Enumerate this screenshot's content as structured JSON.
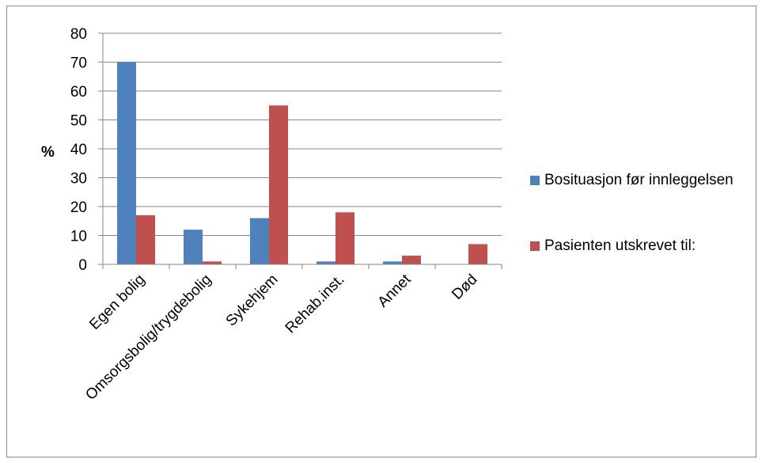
{
  "chart_data": {
    "type": "bar",
    "title": "",
    "xlabel": "",
    "ylabel": "%",
    "ylim": [
      0,
      80
    ],
    "yticks": [
      0,
      10,
      20,
      30,
      40,
      50,
      60,
      70,
      80
    ],
    "grid": true,
    "legend_position": "right",
    "categories": [
      "Egen bolig",
      "Omsorgsbolig/trygdebolig",
      "Sykehjem",
      "Rehab.inst.",
      "Annet",
      "Død"
    ],
    "series": [
      {
        "name": "Bosituasjon før innleggelsen",
        "color": "#4f81bd",
        "values": [
          70,
          12,
          16,
          1,
          1,
          0
        ]
      },
      {
        "name": "Pasienten utskrevet til:",
        "color": "#c0504d",
        "values": [
          17,
          1,
          55,
          18,
          3,
          7
        ]
      }
    ]
  }
}
